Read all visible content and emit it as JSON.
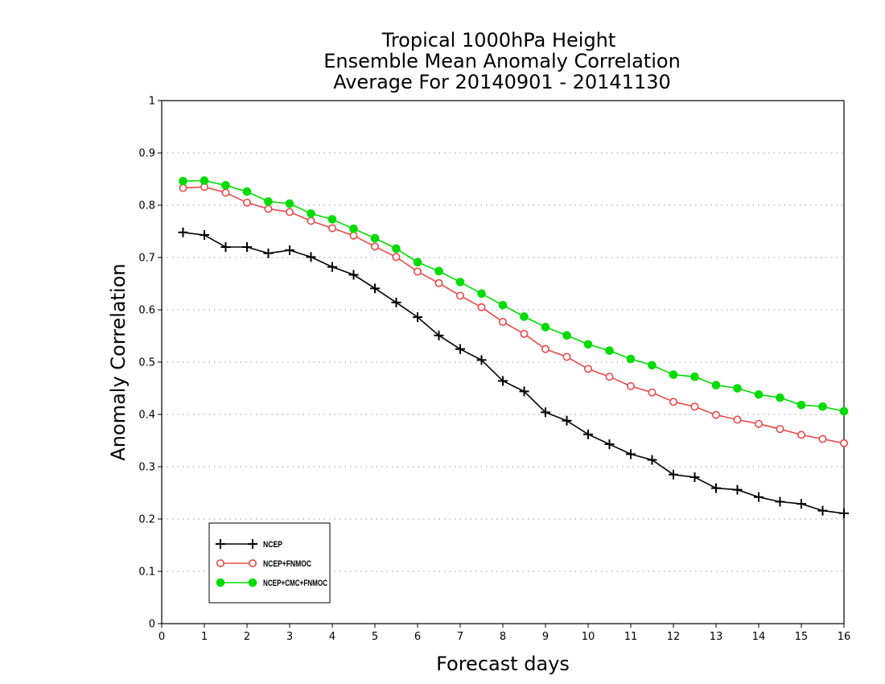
{
  "chart_data": {
    "type": "line",
    "title": [
      "Tropical 1000hPa Height",
      "Ensemble Mean Anomaly Correlation",
      "Average For 20140901 - 20141130"
    ],
    "xlabel": "Forecast days",
    "ylabel": "Anomaly Correlation",
    "xlim": [
      0,
      16
    ],
    "ylim": [
      0,
      1
    ],
    "x_ticks": [
      "0",
      "1",
      "2",
      "3",
      "4",
      "5",
      "6",
      "7",
      "8",
      "9",
      "10",
      "11",
      "12",
      "13",
      "14",
      "15",
      "16"
    ],
    "y_ticks": [
      "0",
      "0.1",
      "0.2",
      "0.3",
      "0.4",
      "0.5",
      "0.6",
      "0.7",
      "0.8",
      "0.9",
      "1"
    ],
    "grid": "dotted horizontal",
    "legend_position": "bottom-left",
    "x": [
      0.5,
      1,
      1.5,
      2,
      2.5,
      3,
      3.5,
      4,
      4.5,
      5,
      5.5,
      6,
      6.5,
      7,
      7.5,
      8,
      8.5,
      9,
      9.5,
      10,
      10.5,
      11,
      11.5,
      12,
      12.5,
      13,
      13.5,
      14,
      14.5,
      15,
      15.5,
      16
    ],
    "series": [
      {
        "name": "NCEP",
        "color": "#000000",
        "marker": "plus",
        "values": [
          0.748,
          0.743,
          0.72,
          0.72,
          0.708,
          0.714,
          0.701,
          0.682,
          0.667,
          0.641,
          0.614,
          0.586,
          0.551,
          0.525,
          0.504,
          0.464,
          0.444,
          0.404,
          0.388,
          0.362,
          0.343,
          0.324,
          0.313,
          0.285,
          0.28,
          0.259,
          0.256,
          0.242,
          0.233,
          0.229,
          0.216,
          0.211
        ]
      },
      {
        "name": "NCEP+FNMOC",
        "color": "#e84848",
        "marker": "open-circle",
        "values": [
          0.833,
          0.835,
          0.824,
          0.805,
          0.793,
          0.787,
          0.77,
          0.756,
          0.742,
          0.721,
          0.701,
          0.673,
          0.651,
          0.627,
          0.605,
          0.577,
          0.554,
          0.525,
          0.51,
          0.487,
          0.472,
          0.454,
          0.442,
          0.424,
          0.415,
          0.399,
          0.39,
          0.382,
          0.372,
          0.361,
          0.353,
          0.345
        ]
      },
      {
        "name": "NCEP+CMC+FNMOC",
        "color": "#00dc00",
        "marker": "filled-circle",
        "values": [
          0.846,
          0.847,
          0.838,
          0.826,
          0.807,
          0.803,
          0.784,
          0.773,
          0.755,
          0.737,
          0.717,
          0.691,
          0.674,
          0.653,
          0.631,
          0.609,
          0.587,
          0.567,
          0.551,
          0.534,
          0.522,
          0.506,
          0.494,
          0.476,
          0.472,
          0.456,
          0.45,
          0.438,
          0.432,
          0.418,
          0.415,
          0.406
        ]
      }
    ]
  }
}
